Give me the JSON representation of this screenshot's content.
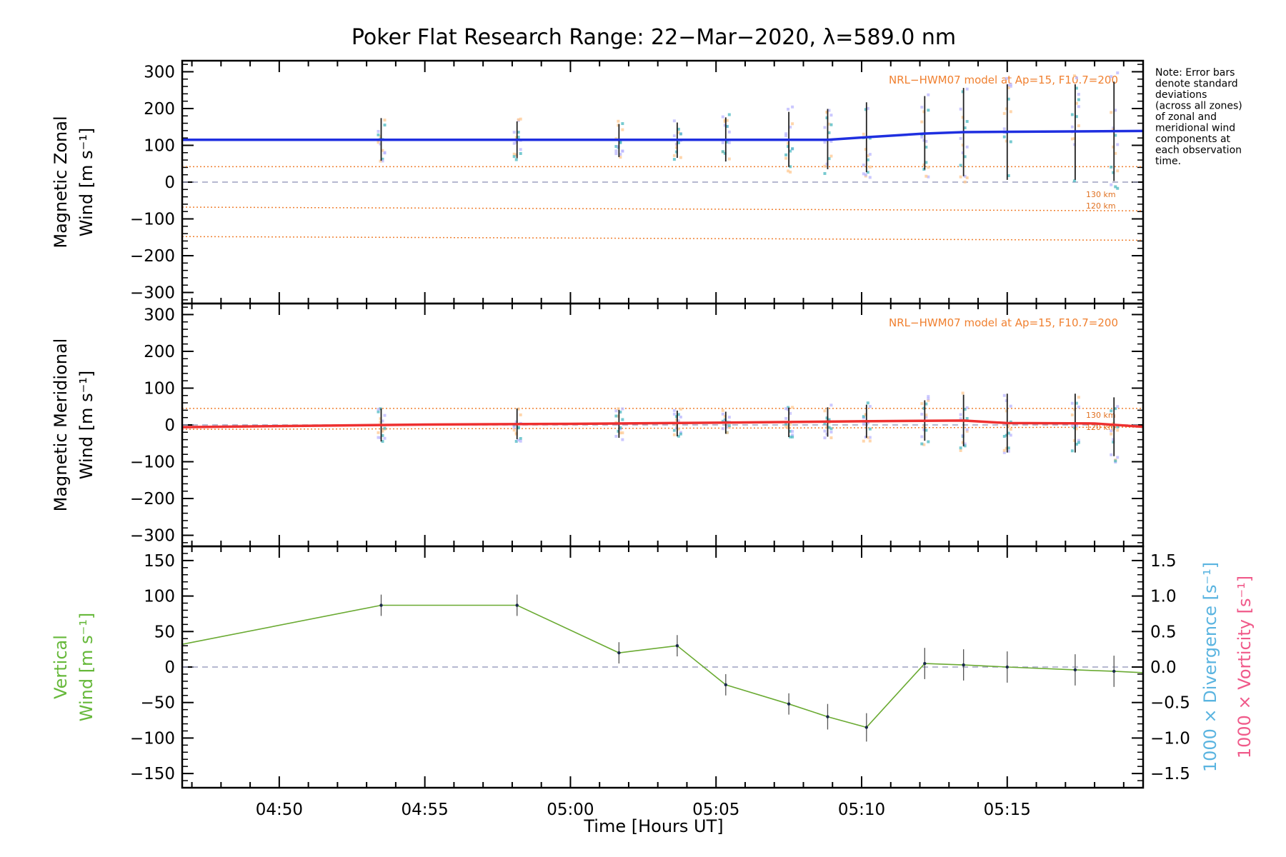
{
  "title": "Poker Flat Research Range: 22−Mar−2020, λ=589.0 nm",
  "note": [
    "Note: Error bars",
    "denote standard",
    "deviations",
    "(across all zones)",
    "of zonal and",
    "meridional wind",
    "components at",
    "each observation",
    "time."
  ],
  "xlabel": "Time [Hours UT]",
  "model_label": "NRL−HWM07 model at Ap=15, F10.7=200",
  "colors": {
    "zonal_line": "#1f2fe0",
    "meridional_line": "#ee3030",
    "vertical_line": "#6aaa32",
    "vertical_label": "#66b83a",
    "model": "#f08030",
    "divergence_label": "#5ab4e0",
    "vorticity_label": "#f05a8a",
    "zero_line": "#9ea0c0",
    "errorbar": "#222222",
    "scatter_lilac": "#b9b6ff",
    "scatter_peach": "#ffc890",
    "scatter_teal": "#4ab8c0"
  },
  "chart_data": [
    {
      "type": "line",
      "panel": "zonal",
      "ylabel": [
        "Magnetic Zonal",
        "Wind [m s⁻¹]"
      ],
      "ylim": [
        -330,
        330
      ],
      "yticks": [
        300,
        200,
        100,
        0,
        -100,
        -200,
        -300
      ],
      "ytick_labels": [
        "300",
        "200",
        "100",
        "0",
        "−100",
        "−200",
        "−300"
      ],
      "x_time": [
        "04:53:30",
        "04:58:10",
        "05:01:40",
        "05:03:40",
        "05:05:20",
        "05:07:30",
        "05:08:50",
        "05:10:10",
        "05:12:10",
        "05:13:30",
        "05:15:00",
        "05:17:20",
        "05:18:40"
      ],
      "mean": [
        116,
        115,
        113,
        114,
        116,
        116,
        117,
        122,
        134,
        136,
        136,
        136,
        138
      ],
      "error": [
        58,
        50,
        45,
        48,
        60,
        75,
        82,
        95,
        100,
        120,
        130,
        130,
        135
      ],
      "wind_line": {
        "x": [
          "04:46:40",
          "05:08:50",
          "05:10:10",
          "05:12:10",
          "05:13:30",
          "05:19:40"
        ],
        "y": [
          115,
          115,
          122,
          132,
          136,
          139
        ]
      },
      "model_curves": [
        {
          "label": "",
          "x": [
            "04:46:40",
            "05:19:40"
          ],
          "y": [
            42,
            42
          ]
        },
        {
          "label": "130 km",
          "x": [
            "04:46:40",
            "05:19:40"
          ],
          "y": [
            -68,
            -78
          ]
        },
        {
          "label": "120 km",
          "x": [
            "04:46:40",
            "05:19:40"
          ],
          "y": [
            -148,
            -158
          ]
        }
      ]
    },
    {
      "type": "line",
      "panel": "meridional",
      "ylabel": [
        "Magnetic Meridional",
        "Wind [m s⁻¹]"
      ],
      "ylim": [
        -330,
        330
      ],
      "yticks": [
        300,
        200,
        100,
        0,
        -100,
        -200,
        -300
      ],
      "ytick_labels": [
        "300",
        "200",
        "100",
        "0",
        "−100",
        "−200",
        "−300"
      ],
      "x_time": [
        "04:53:30",
        "04:58:10",
        "05:01:40",
        "05:03:40",
        "05:05:20",
        "05:07:30",
        "05:08:50",
        "05:10:10",
        "05:12:10",
        "05:13:30",
        "05:15:00",
        "05:17:20",
        "05:18:40"
      ],
      "mean": [
        0,
        3,
        3,
        4,
        6,
        7,
        8,
        10,
        12,
        12,
        5,
        5,
        -5
      ],
      "error": [
        45,
        42,
        38,
        35,
        30,
        40,
        40,
        45,
        55,
        70,
        80,
        80,
        80
      ],
      "wind_line": {
        "x": [
          "04:46:40",
          "04:55:00",
          "05:00:00",
          "05:05:00",
          "05:10:00",
          "05:13:30",
          "05:15:00",
          "05:18:00",
          "05:19:40"
        ],
        "y": [
          -6,
          1,
          3,
          6,
          10,
          12,
          5,
          4,
          -5
        ]
      },
      "model_curves": [
        {
          "label": "130 km",
          "x": [
            "04:46:40",
            "05:19:40"
          ],
          "y": [
            45,
            45
          ]
        },
        {
          "label": "120 km",
          "x": [
            "04:46:40",
            "05:19:40"
          ],
          "y": [
            -12,
            -6
          ]
        }
      ]
    },
    {
      "type": "line",
      "panel": "vertical",
      "ylabel": [
        "Vertical",
        "Wind [m s⁻¹]"
      ],
      "ylim": [
        -170,
        170
      ],
      "yticks": [
        150,
        100,
        50,
        0,
        -50,
        -100,
        -150
      ],
      "ytick_labels": [
        "150",
        "100",
        "50",
        "0",
        "−50",
        "−100",
        "−150"
      ],
      "right_axis": {
        "ylabel_divergence": "1000 × Divergence [s⁻¹]",
        "ylabel_vorticity": "1000 × Vorticity [s⁻¹]",
        "ylim": [
          -1.7,
          1.7
        ],
        "yticks": [
          1.5,
          1.0,
          0.5,
          0.0,
          -0.5,
          -1.0,
          -1.5
        ],
        "ytick_labels": [
          "1.5",
          "1.0",
          "0.5",
          "0.0",
          "−0.5",
          "−1.0",
          "−1.5"
        ]
      },
      "x": [
        "04:46:40",
        "04:53:30",
        "04:58:10",
        "05:01:40",
        "05:03:40",
        "05:05:20",
        "05:07:30",
        "05:08:50",
        "05:10:10",
        "05:12:10",
        "05:13:30",
        "05:15:00",
        "05:17:20",
        "05:18:40",
        "05:19:40"
      ],
      "y": [
        32,
        87,
        87,
        20,
        30,
        -25,
        -52,
        -70,
        -85,
        5,
        3,
        0,
        -4,
        -6,
        -8
      ],
      "error": [
        0,
        15,
        15,
        15,
        15,
        15,
        15,
        18,
        20,
        22,
        22,
        22,
        22,
        22,
        0
      ]
    }
  ],
  "x_axis": {
    "xlim": [
      "04:46:40",
      "05:19:40"
    ],
    "ticks": [
      "04:50",
      "04:55",
      "05:00",
      "05:05",
      "05:10",
      "05:15"
    ],
    "tick_labels": [
      "04:50",
      "04:55",
      "05:00",
      "05:05",
      "05:10",
      "05:15"
    ]
  }
}
